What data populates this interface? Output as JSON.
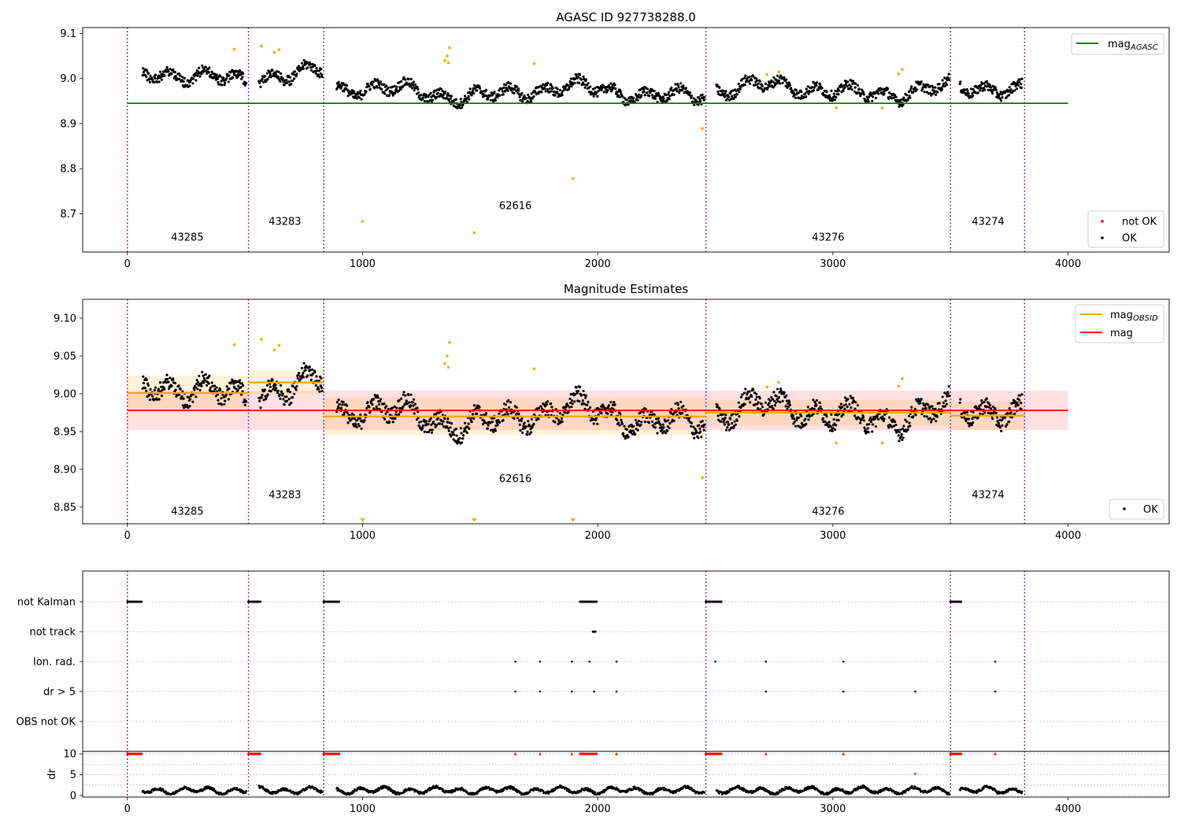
{
  "chart_data": [
    {
      "type": "scatter",
      "title": "AGASC ID 927738288.0",
      "xlabel": "",
      "ylabel": "",
      "xlim": [
        -190,
        4430
      ],
      "ylim": [
        8.615,
        9.113
      ],
      "x_ticks": [
        0,
        1000,
        2000,
        3000,
        4000
      ],
      "x_tick_labels": [
        "0",
        "1000",
        "2000",
        "3000",
        "4000"
      ],
      "y_ticks": [
        8.7,
        8.8,
        8.9,
        9.0,
        9.1
      ],
      "y_tick_labels": [
        "8.7",
        "8.8",
        "8.9",
        "9.0",
        "9.1"
      ],
      "obs_boundaries": [
        0,
        515,
        835,
        2460,
        3500,
        3815
      ],
      "obs_labels": [
        {
          "text": "43285",
          "x": 255,
          "y": 8.64
        },
        {
          "text": "43283",
          "x": 670,
          "y": 8.675
        },
        {
          "text": "62616",
          "x": 1650,
          "y": 8.71
        },
        {
          "text": "43276",
          "x": 2980,
          "y": 8.64
        },
        {
          "text": "43274",
          "x": 3660,
          "y": 8.675
        }
      ],
      "hlines": [
        {
          "name": "mag_AGASC",
          "y": 8.945,
          "x_range": [
            0,
            4000
          ],
          "color": "#008000"
        }
      ],
      "ok_points_color": "#000000",
      "flagged_points_color": "#ffa500",
      "flagged_points": [
        {
          "x": 1000,
          "y": 8.683
        },
        {
          "x": 1475,
          "y": 8.658
        },
        {
          "x": 1895,
          "y": 8.778
        },
        {
          "x": 2445,
          "y": 8.889
        },
        {
          "x": 1370,
          "y": 9.068
        },
        {
          "x": 1360,
          "y": 9.05
        },
        {
          "x": 1350,
          "y": 9.04
        },
        {
          "x": 1365,
          "y": 9.035
        },
        {
          "x": 1730,
          "y": 9.033
        },
        {
          "x": 455,
          "y": 9.065
        },
        {
          "x": 570,
          "y": 9.072
        },
        {
          "x": 625,
          "y": 9.058
        },
        {
          "x": 645,
          "y": 9.064
        },
        {
          "x": 2720,
          "y": 9.009
        },
        {
          "x": 2770,
          "y": 9.015
        },
        {
          "x": 3015,
          "y": 8.935
        },
        {
          "x": 3210,
          "y": 8.935
        },
        {
          "x": 3295,
          "y": 9.02
        },
        {
          "x": 3280,
          "y": 9.01
        }
      ],
      "legends": [
        {
          "placement": "upper right",
          "entries": [
            {
              "label": "mag",
              "sub": "AGASC",
              "color": "#008000",
              "kind": "line"
            }
          ]
        },
        {
          "placement": "lower right",
          "entries": [
            {
              "label": "not OK",
              "color": "#ff0000",
              "kind": "dot"
            },
            {
              "label": "OK",
              "color": "#000000",
              "kind": "dot"
            }
          ]
        }
      ]
    },
    {
      "type": "scatter",
      "title": "Magnitude Estimates",
      "xlabel": "",
      "ylabel": "",
      "xlim": [
        -190,
        4430
      ],
      "ylim": [
        8.828,
        9.125
      ],
      "x_ticks": [
        0,
        1000,
        2000,
        3000,
        4000
      ],
      "x_tick_labels": [
        "0",
        "1000",
        "2000",
        "3000",
        "4000"
      ],
      "y_ticks": [
        8.85,
        8.9,
        8.95,
        9.0,
        9.05,
        9.1
      ],
      "y_tick_labels": [
        "8.85",
        "8.90",
        "8.95",
        "9.00",
        "9.05",
        "9.10"
      ],
      "obs_boundaries": [
        0,
        515,
        835,
        2460,
        3500,
        3815
      ],
      "obs_labels": [
        {
          "text": "43285",
          "x": 255,
          "y": 8.84
        },
        {
          "text": "43283",
          "x": 670,
          "y": 8.862
        },
        {
          "text": "62616",
          "x": 1650,
          "y": 8.883
        },
        {
          "text": "43276",
          "x": 2980,
          "y": 8.84
        },
        {
          "text": "43274",
          "x": 3660,
          "y": 8.862
        }
      ],
      "mag": {
        "y": 8.978,
        "band": [
          8.952,
          9.004
        ],
        "x_range": [
          0,
          4000
        ],
        "color": "#ff0000"
      },
      "mag_obsid": [
        {
          "x_range": [
            0,
            515
          ],
          "y": 9.001,
          "band": [
            8.978,
            9.024
          ]
        },
        {
          "x_range": [
            515,
            835
          ],
          "y": 9.015,
          "band": [
            9.0,
            9.031
          ]
        },
        {
          "x_range": [
            835,
            2460
          ],
          "y": 8.97,
          "band": [
            8.945,
            8.995
          ]
        },
        {
          "x_range": [
            2460,
            3500
          ],
          "y": 8.975,
          "band": [
            8.958,
            8.992
          ]
        },
        {
          "x_range": [
            3500,
            3815
          ],
          "y": 8.971,
          "band": [
            8.952,
            8.99
          ]
        }
      ],
      "flagged_points": [
        {
          "x": 1000,
          "y": 8.832,
          "marker": "triangle"
        },
        {
          "x": 1475,
          "y": 8.832,
          "marker": "triangle"
        },
        {
          "x": 1895,
          "y": 8.832,
          "marker": "triangle"
        },
        {
          "x": 2445,
          "y": 8.889
        },
        {
          "x": 1370,
          "y": 9.068
        },
        {
          "x": 1360,
          "y": 9.05
        },
        {
          "x": 1350,
          "y": 9.04
        },
        {
          "x": 1365,
          "y": 9.035
        },
        {
          "x": 1730,
          "y": 9.033
        },
        {
          "x": 455,
          "y": 9.065
        },
        {
          "x": 570,
          "y": 9.072
        },
        {
          "x": 625,
          "y": 9.058
        },
        {
          "x": 645,
          "y": 9.064
        },
        {
          "x": 2720,
          "y": 9.009
        },
        {
          "x": 2770,
          "y": 9.015
        },
        {
          "x": 3015,
          "y": 8.935
        },
        {
          "x": 3210,
          "y": 8.935
        },
        {
          "x": 3295,
          "y": 9.02
        },
        {
          "x": 3280,
          "y": 9.01
        }
      ],
      "legends": [
        {
          "placement": "upper right",
          "entries": [
            {
              "label": "mag",
              "sub": "OBSID",
              "color": "#ffa500",
              "kind": "line"
            },
            {
              "label": "mag",
              "color": "#ff0000",
              "kind": "line"
            }
          ]
        },
        {
          "placement": "lower right",
          "entries": [
            {
              "label": "OK",
              "color": "#000000",
              "kind": "dot"
            }
          ]
        }
      ]
    },
    {
      "type": "scatter",
      "title": "",
      "xlabel": "",
      "ylabel": "",
      "xlim": [
        -190,
        4430
      ],
      "x_ticks": [
        0,
        1000,
        2000,
        3000,
        4000
      ],
      "x_tick_labels": [
        "0",
        "1000",
        "2000",
        "3000",
        "4000"
      ],
      "flag_rows": [
        "not Kalman",
        "not track",
        "Ion. rad.",
        "dr > 5",
        "OBS not OK"
      ],
      "obs_boundaries": [
        0,
        515,
        835,
        2460,
        3500,
        3815
      ],
      "flag_runs": [
        {
          "row": "not Kalman",
          "x_ranges": [
            [
              0,
              60
            ],
            [
              515,
              565
            ],
            [
              835,
              900
            ],
            [
              1925,
              1995
            ],
            [
              2460,
              2525
            ],
            [
              3500,
              3545
            ]
          ]
        },
        {
          "row": "not track",
          "x_ranges": [
            [
              1980,
              1990
            ]
          ]
        }
      ],
      "flag_points": [
        {
          "row": "Ion. rad.",
          "x": [
            1650,
            1755,
            1890,
            1965,
            2080,
            2500,
            2715,
            3045,
            3690
          ]
        },
        {
          "row": "dr > 5",
          "x": [
            1650,
            1755,
            1890,
            1985,
            2080,
            2715,
            3045,
            3350,
            3690
          ]
        }
      ]
    },
    {
      "type": "scatter",
      "title": "",
      "xlabel": "",
      "ylabel": "dr",
      "xlim": [
        -190,
        4430
      ],
      "ylim": [
        -0.4,
        10.6
      ],
      "x_ticks": [
        0,
        1000,
        2000,
        3000,
        4000
      ],
      "x_tick_labels": [
        "0",
        "1000",
        "2000",
        "3000",
        "4000"
      ],
      "y_ticks": [
        0,
        5,
        10
      ],
      "y_tick_labels": [
        "0",
        "5",
        "10"
      ],
      "obs_boundaries": [
        0,
        515,
        835,
        2460,
        3500,
        3815
      ],
      "clipped_value": 10,
      "clipped_runs": [
        [
          0,
          60
        ],
        [
          515,
          565
        ],
        [
          835,
          900
        ],
        [
          1925,
          1995
        ],
        [
          2460,
          2525
        ],
        [
          3500,
          3545
        ]
      ],
      "clipped_points": [
        1650,
        1755,
        1890,
        2080,
        2715,
        3045,
        3690
      ],
      "outlier_points": [
        {
          "x": 3350,
          "y": 5.2
        }
      ],
      "colors": {
        "ok": "#000000",
        "clipped": "#ff0000"
      }
    }
  ]
}
